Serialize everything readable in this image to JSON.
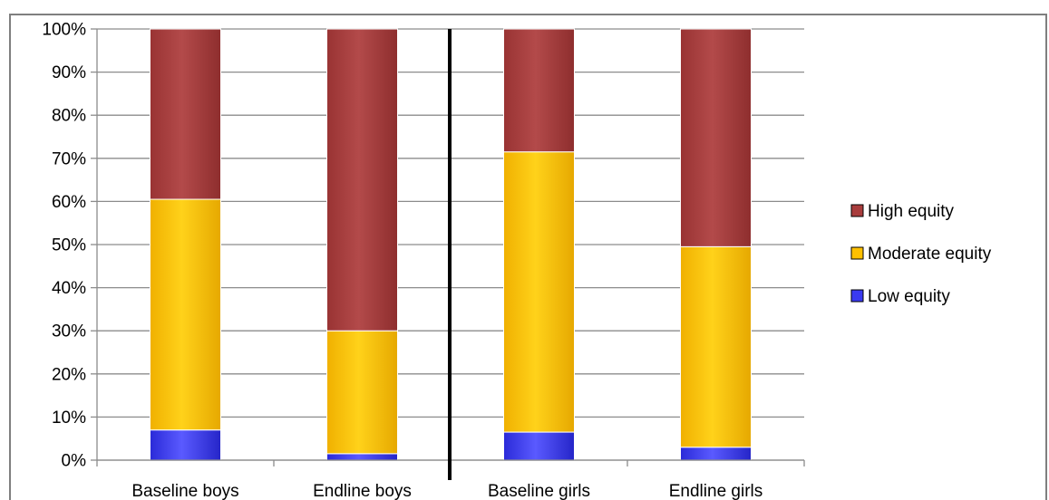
{
  "chart_data": {
    "type": "bar",
    "stacked": true,
    "percent_stacked": true,
    "categories": [
      "Baseline boys",
      "Endline boys",
      "Baseline girls",
      "Endline girls"
    ],
    "series": [
      {
        "name": "Low equity",
        "values": [
          7,
          1.5,
          6.5,
          3
        ],
        "color": "#3a3af0"
      },
      {
        "name": "Moderate equity",
        "values": [
          53.5,
          28.5,
          65,
          46.5
        ],
        "color": "#ffc000"
      },
      {
        "name": "High equity",
        "values": [
          39.5,
          70,
          28.5,
          50.5
        ],
        "color": "#a83c3c"
      }
    ],
    "y_ticks": [
      "0%",
      "10%",
      "20%",
      "30%",
      "40%",
      "50%",
      "60%",
      "70%",
      "80%",
      "90%",
      "100%"
    ],
    "ylim": [
      0,
      100
    ],
    "grid": true,
    "legend_position": "right",
    "legend_order": [
      "High equity",
      "Moderate equity",
      "Low equity"
    ],
    "divider_after_category": 1
  }
}
